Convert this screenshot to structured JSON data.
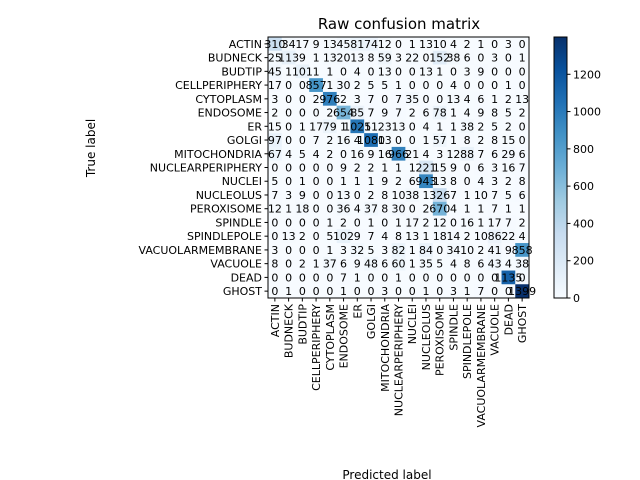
{
  "chart_data": {
    "type": "heatmap",
    "title": "Raw confusion matrix",
    "xlabel": "Predicted label",
    "ylabel": "True label",
    "labels": [
      "ACTIN",
      "BUDNECK",
      "BUDTIP",
      "CELLPERIPHERY",
      "CYTOPLASM",
      "ENDOSOME",
      "ER",
      "GOLGI",
      "MITOCHONDRIA",
      "NUCLEARPERIPHERY",
      "NUCLEI",
      "NUCLEOLUS",
      "PEROXISOME",
      "SPINDLE",
      "SPINDLEPOLE",
      "VACUOLARMEMBRANE",
      "VACUOLE",
      "DEAD",
      "GHOST"
    ],
    "matrix": [
      [
        310,
        34,
        17,
        9,
        13,
        45,
        81,
        74,
        12,
        0,
        1,
        13,
        10,
        4,
        2,
        1,
        0,
        3,
        0
      ],
      [
        25,
        113,
        9,
        1,
        13,
        20,
        13,
        8,
        59,
        3,
        22,
        0,
        152,
        38,
        6,
        0,
        3,
        0,
        1
      ],
      [
        45,
        1,
        101,
        1,
        1,
        0,
        4,
        0,
        13,
        0,
        0,
        13,
        1,
        0,
        3,
        9,
        0,
        0,
        0
      ],
      [
        17,
        0,
        0,
        857,
        1,
        30,
        2,
        5,
        5,
        1,
        0,
        0,
        0,
        4,
        0,
        0,
        0,
        1,
        0
      ],
      [
        3,
        0,
        0,
        2,
        976,
        2,
        3,
        7,
        0,
        7,
        35,
        0,
        0,
        13,
        4,
        6,
        1,
        2,
        13
      ],
      [
        2,
        0,
        0,
        0,
        2,
        654,
        85,
        7,
        9,
        7,
        2,
        6,
        78,
        1,
        4,
        9,
        8,
        5,
        2
      ],
      [
        15,
        0,
        1,
        17,
        79,
        1,
        1025,
        11,
        23,
        13,
        0,
        4,
        1,
        1,
        38,
        2,
        5,
        2,
        0
      ],
      [
        97,
        0,
        0,
        7,
        2,
        16,
        4,
        1080,
        13,
        0,
        0,
        1,
        57,
        1,
        8,
        2,
        8,
        15,
        0
      ],
      [
        67,
        4,
        5,
        4,
        2,
        0,
        16,
        9,
        16,
        966,
        21,
        4,
        3,
        12,
        88,
        7,
        6,
        29,
        6
      ],
      [
        0,
        0,
        0,
        0,
        0,
        9,
        2,
        2,
        1,
        1,
        1,
        221,
        15,
        9,
        0,
        6,
        3,
        16,
        7
      ],
      [
        5,
        0,
        1,
        0,
        0,
        1,
        1,
        1,
        9,
        2,
        6,
        943,
        13,
        8,
        0,
        4,
        3,
        2,
        8
      ],
      [
        7,
        3,
        9,
        0,
        0,
        13,
        0,
        2,
        8,
        10,
        38,
        1,
        326,
        7,
        1,
        10,
        7,
        5,
        6
      ],
      [
        12,
        1,
        18,
        0,
        0,
        36,
        4,
        37,
        8,
        30,
        0,
        2,
        670,
        4,
        1,
        1,
        7,
        1,
        1
      ],
      [
        0,
        0,
        0,
        0,
        1,
        2,
        0,
        1,
        0,
        1,
        17,
        2,
        12,
        0,
        16,
        1,
        17,
        7,
        2
      ],
      [
        0,
        13,
        2,
        0,
        5,
        102,
        9,
        7,
        4,
        8,
        13,
        1,
        18,
        14,
        2,
        10,
        86,
        22,
        4
      ],
      [
        3,
        0,
        0,
        0,
        1,
        3,
        32,
        5,
        3,
        82,
        1,
        84,
        0,
        34,
        10,
        2,
        41,
        9,
        858
      ],
      [
        8,
        0,
        2,
        1,
        37,
        6,
        9,
        48,
        6,
        60,
        1,
        35,
        5,
        4,
        8,
        6,
        43,
        4,
        38
      ],
      [
        0,
        0,
        0,
        0,
        0,
        7,
        1,
        0,
        0,
        1,
        0,
        0,
        0,
        0,
        0,
        0,
        0,
        1135,
        0
      ],
      [
        0,
        1,
        0,
        0,
        0,
        1,
        0,
        0,
        3,
        0,
        0,
        1,
        0,
        3,
        1,
        7,
        0,
        0,
        1399
      ]
    ],
    "colorbar": {
      "min": 0,
      "max": 1400,
      "ticks": [
        0,
        200,
        400,
        600,
        800,
        1000,
        1200
      ]
    },
    "colormap": {
      "low": "#f7fbff",
      "high": "#08306b"
    },
    "grid": false
  }
}
